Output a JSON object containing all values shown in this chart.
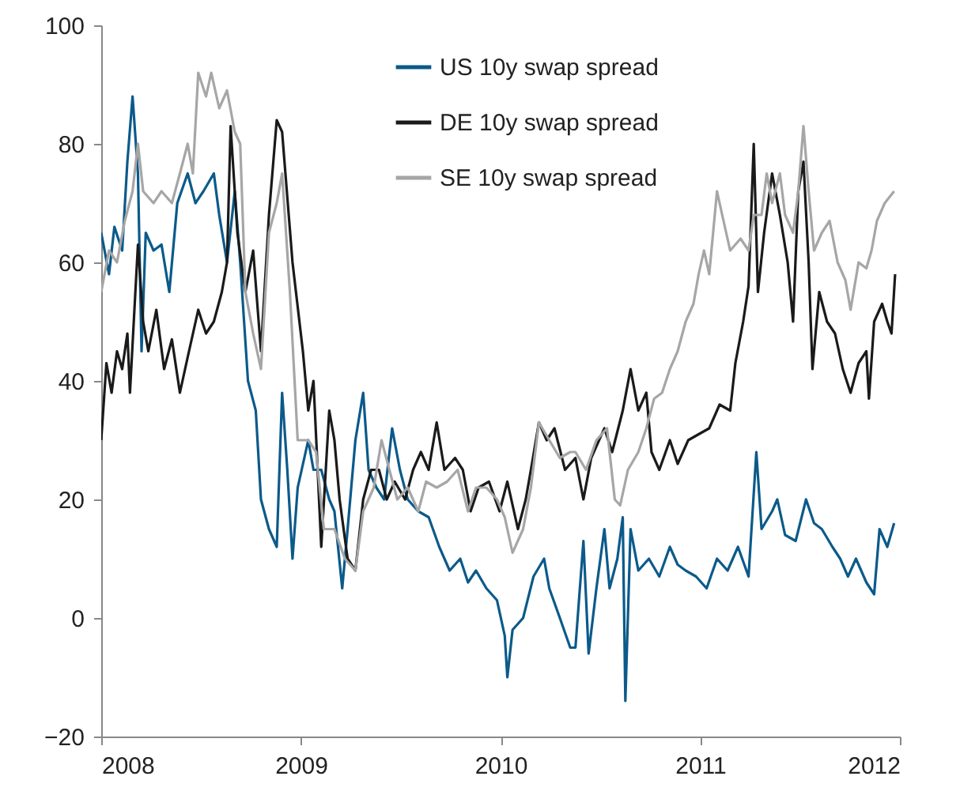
{
  "chart_data": {
    "type": "line",
    "xlim": [
      2008,
      2012
    ],
    "xticks": [
      2008,
      2009,
      2010,
      2011,
      2012
    ],
    "ylim": [
      -20,
      100
    ],
    "yticks": [
      -20,
      0,
      20,
      40,
      60,
      80,
      100
    ],
    "grid": false,
    "legend": "top",
    "series": [
      {
        "name": "US 10y swap spread",
        "color": "#0b5a8a",
        "x": [
          2008,
          2008.039,
          2008.066,
          2008.105,
          2008.131,
          2008.157,
          2008.184,
          2008.202,
          2008.223,
          2008.262,
          2008.302,
          2008.341,
          2008.381,
          2008.433,
          2008.472,
          2008.512,
          2008.564,
          2008.591,
          2008.63,
          2008.669,
          2008.696,
          2008.735,
          2008.774,
          2008.8,
          2008.84,
          2008.879,
          2008.906,
          2008.932,
          2008.958,
          2008.984,
          2009.037,
          2009.063,
          2009.102,
          2009.142,
          2009.168,
          2009.207,
          2009.234,
          2009.273,
          2009.312,
          2009.339,
          2009.378,
          2009.417,
          2009.457,
          2009.496,
          2009.535,
          2009.588,
          2009.64,
          2009.693,
          2009.745,
          2009.798,
          2009.837,
          2009.877,
          2009.929,
          2009.982,
          2010.021,
          2010.034,
          2010.06,
          2010.113,
          2010.165,
          2010.218,
          2010.244,
          2010.297,
          2010.349,
          2010.375,
          2010.415,
          2010.441,
          2010.48,
          2010.52,
          2010.546,
          2010.585,
          2010.612,
          2010.625,
          2010.651,
          2010.69,
          2010.743,
          2010.795,
          2010.848,
          2010.887,
          2010.927,
          2010.979,
          2011.032,
          2011.084,
          2011.137,
          2011.189,
          2011.242,
          2011.281,
          2011.307,
          2011.36,
          2011.386,
          2011.425,
          2011.478,
          2011.53,
          2011.57,
          2011.609,
          2011.662,
          2011.701,
          2011.74,
          2011.78,
          2011.832,
          2011.871,
          2011.898,
          2011.937,
          2011.971
        ],
        "values": [
          65,
          58,
          66,
          62,
          77,
          88,
          75,
          45,
          65,
          62,
          63,
          55,
          70,
          75,
          70,
          72,
          75,
          68,
          60,
          72,
          60,
          40,
          35,
          20,
          15,
          12,
          38,
          25,
          10,
          22,
          30,
          25,
          25,
          20,
          18,
          5,
          15,
          30,
          38,
          25,
          22,
          20,
          32,
          25,
          20,
          18,
          17,
          12,
          8,
          10,
          6,
          8,
          5,
          3,
          -3,
          -10,
          -2,
          0,
          7,
          10,
          5,
          0,
          -5,
          -5,
          13,
          -6,
          5,
          15,
          5,
          10,
          17,
          -14,
          15,
          8,
          10,
          7,
          12,
          9,
          8,
          7,
          5,
          10,
          8,
          12,
          7,
          28,
          15,
          18,
          20,
          14,
          13,
          20,
          16,
          15,
          12,
          10,
          7,
          10,
          6,
          4,
          15,
          12,
          16
        ]
      },
      {
        "name": "DE 10y swap spread",
        "color": "#1a1a1a",
        "x": [
          2008,
          2008.026,
          2008.052,
          2008.079,
          2008.105,
          2008.131,
          2008.144,
          2008.171,
          2008.184,
          2008.21,
          2008.236,
          2008.276,
          2008.315,
          2008.354,
          2008.394,
          2008.433,
          2008.486,
          2008.525,
          2008.564,
          2008.604,
          2008.63,
          2008.648,
          2008.682,
          2008.722,
          2008.761,
          2008.8,
          2008.84,
          2008.879,
          2008.906,
          2008.958,
          2009.01,
          2009.037,
          2009.063,
          2009.102,
          2009.142,
          2009.168,
          2009.194,
          2009.234,
          2009.273,
          2009.312,
          2009.352,
          2009.391,
          2009.43,
          2009.47,
          2009.522,
          2009.562,
          2009.601,
          2009.64,
          2009.68,
          2009.719,
          2009.772,
          2009.811,
          2009.85,
          2009.89,
          2009.942,
          2009.995,
          2010.034,
          2010.087,
          2010.126,
          2010.152,
          2010.192,
          2010.231,
          2010.27,
          2010.323,
          2010.375,
          2010.415,
          2010.454,
          2010.52,
          2010.559,
          2010.612,
          2010.651,
          2010.69,
          2010.73,
          2010.756,
          2010.795,
          2010.848,
          2010.887,
          2010.94,
          2010.992,
          2011.045,
          2011.097,
          2011.15,
          2011.176,
          2011.215,
          2011.242,
          2011.268,
          2011.289,
          2011.32,
          2011.36,
          2011.399,
          2011.438,
          2011.465,
          2011.491,
          2011.517,
          2011.543,
          2011.562,
          2011.596,
          2011.635,
          2011.675,
          2011.714,
          2011.753,
          2011.793,
          2011.832,
          2011.845,
          2011.871,
          2011.911,
          2011.937,
          2011.958,
          2011.976
        ],
        "values": [
          30,
          43,
          38,
          45,
          42,
          48,
          38,
          55,
          63,
          50,
          45,
          52,
          42,
          47,
          38,
          44,
          52,
          48,
          50,
          55,
          60,
          83,
          65,
          55,
          62,
          45,
          68,
          84,
          82,
          60,
          45,
          35,
          40,
          12,
          35,
          30,
          20,
          10,
          8,
          20,
          25,
          25,
          20,
          23,
          20,
          25,
          28,
          25,
          33,
          25,
          27,
          25,
          18,
          22,
          23,
          18,
          23,
          15,
          20,
          25,
          33,
          30,
          32,
          25,
          27,
          20,
          27,
          32,
          28,
          35,
          42,
          35,
          38,
          28,
          25,
          30,
          26,
          30,
          31,
          32,
          36,
          35,
          43,
          50,
          56,
          80,
          55,
          65,
          75,
          68,
          60,
          50,
          72,
          77,
          60,
          42,
          55,
          50,
          48,
          42,
          38,
          43,
          45,
          37,
          50,
          53,
          50,
          48,
          58
        ]
      },
      {
        "name": "SE 10y swap spread",
        "color": "#a6a6a6",
        "x": [
          2008,
          2008.039,
          2008.079,
          2008.118,
          2008.157,
          2008.184,
          2008.21,
          2008.262,
          2008.302,
          2008.354,
          2008.394,
          2008.433,
          2008.459,
          2008.486,
          2008.525,
          2008.551,
          2008.591,
          2008.63,
          2008.669,
          2008.696,
          2008.722,
          2008.761,
          2008.8,
          2008.84,
          2008.879,
          2008.906,
          2008.945,
          2008.984,
          2009.037,
          2009.076,
          2009.115,
          2009.168,
          2009.22,
          2009.273,
          2009.312,
          2009.365,
          2009.404,
          2009.443,
          2009.483,
          2009.535,
          2009.588,
          2009.627,
          2009.68,
          2009.732,
          2009.785,
          2009.837,
          2009.877,
          2009.929,
          2009.982,
          2010.021,
          2010.06,
          2010.113,
          2010.152,
          2010.192,
          2010.244,
          2010.297,
          2010.349,
          2010.375,
          2010.428,
          2010.48,
          2010.533,
          2010.572,
          2010.599,
          2010.638,
          2010.69,
          2010.73,
          2010.769,
          2010.809,
          2010.848,
          2010.887,
          2010.927,
          2010.966,
          2010.992,
          2011.019,
          2011.045,
          2011.084,
          2011.11,
          2011.15,
          2011.202,
          2011.242,
          2011.268,
          2011.307,
          2011.333,
          2011.36,
          2011.399,
          2011.425,
          2011.465,
          2011.491,
          2011.517,
          2011.543,
          2011.57,
          2011.609,
          2011.648,
          2011.688,
          2011.727,
          2011.753,
          2011.793,
          2011.832,
          2011.858,
          2011.885,
          2011.924,
          2011.971
        ],
        "values": [
          55,
          62,
          60,
          67,
          72,
          80,
          72,
          70,
          72,
          70,
          75,
          80,
          75,
          92,
          88,
          92,
          86,
          89,
          82,
          80,
          55,
          48,
          42,
          65,
          70,
          75,
          55,
          30,
          30,
          28,
          15,
          15,
          10,
          8,
          18,
          22,
          30,
          25,
          20,
          22,
          18,
          23,
          22,
          23,
          25,
          18,
          22,
          22,
          20,
          17,
          11,
          15,
          22,
          33,
          30,
          27,
          28,
          28,
          25,
          30,
          32,
          20,
          19,
          25,
          28,
          32,
          37,
          38,
          42,
          45,
          50,
          53,
          58,
          62,
          58,
          72,
          68,
          62,
          64,
          62,
          68,
          68,
          75,
          70,
          75,
          68,
          65,
          72,
          83,
          72,
          62,
          65,
          67,
          60,
          57,
          52,
          60,
          59,
          62,
          67,
          70,
          72
        ]
      }
    ]
  }
}
